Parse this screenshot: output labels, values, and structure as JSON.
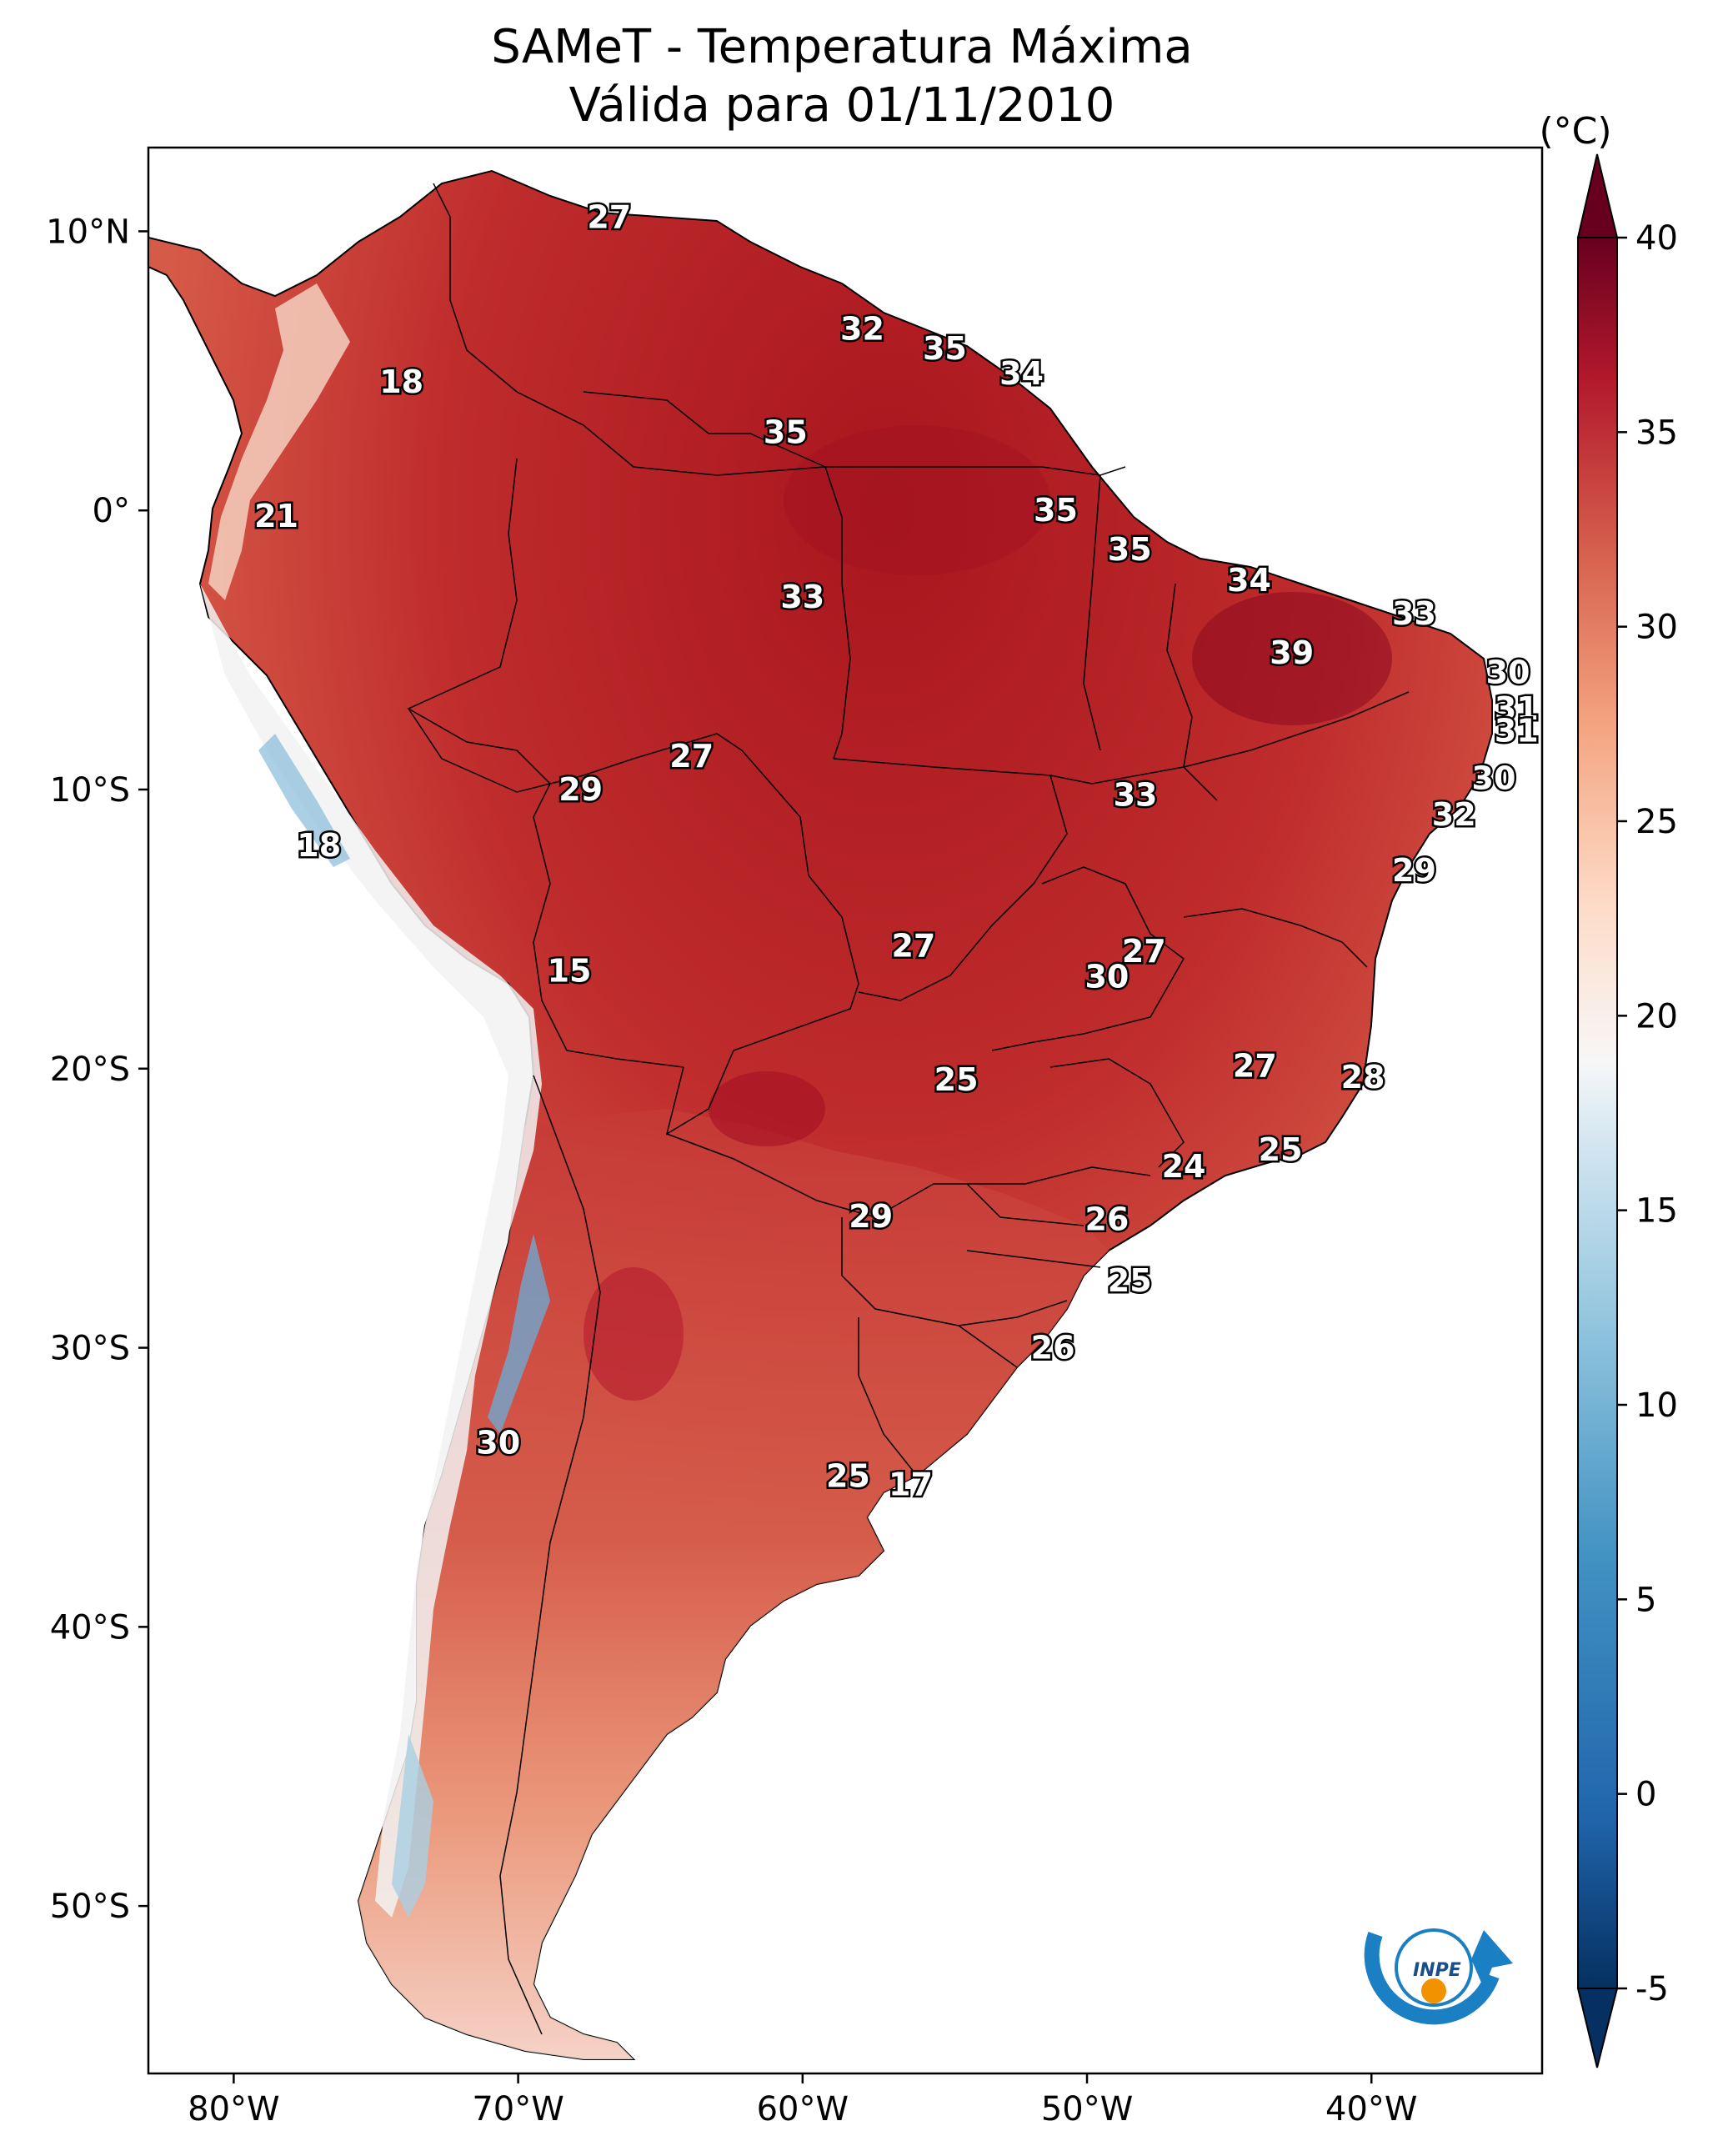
{
  "title": {
    "line1": "SAMeT - Temperatura Máxima",
    "line2": "Válida para 01/11/2010"
  },
  "colorbar": {
    "unit": "(°C)",
    "ticks": [
      "40",
      "35",
      "30",
      "25",
      "20",
      "15",
      "10",
      "5",
      "0",
      "-5"
    ],
    "tick_values": [
      40,
      35,
      30,
      25,
      20,
      15,
      10,
      5,
      0,
      -5
    ],
    "min": -5,
    "max": 40,
    "colormap": "RdBu_r",
    "extend": "both"
  },
  "axes": {
    "lon_ticks": [
      "80°W",
      "70°W",
      "60°W",
      "50°W",
      "40°W"
    ],
    "lon_values": [
      -80,
      -70,
      -60,
      -50,
      -40
    ],
    "lat_ticks": [
      "10°N",
      "0°",
      "10°S",
      "20°S",
      "30°S",
      "40°S",
      "50°S"
    ],
    "lat_values": [
      10,
      0,
      -10,
      -20,
      -30,
      -40,
      -50
    ],
    "lon_range": [
      -83,
      -34
    ],
    "lat_range": [
      -56,
      13
    ]
  },
  "city_labels": [
    {
      "text": "27",
      "lon": -66.8,
      "lat": 10.5
    },
    {
      "text": "32",
      "lon": -57.9,
      "lat": 6.5
    },
    {
      "text": "35",
      "lon": -55.0,
      "lat": 5.8
    },
    {
      "text": "34",
      "lon": -52.3,
      "lat": 4.9
    },
    {
      "text": "18",
      "lon": -74.1,
      "lat": 4.6
    },
    {
      "text": "35",
      "lon": -60.6,
      "lat": 2.8
    },
    {
      "text": "35",
      "lon": -51.1,
      "lat": 0.0
    },
    {
      "text": "21",
      "lon": -78.5,
      "lat": -0.2
    },
    {
      "text": "35",
      "lon": -48.5,
      "lat": -1.4
    },
    {
      "text": "34",
      "lon": -44.3,
      "lat": -2.5
    },
    {
      "text": "33",
      "lon": -60.0,
      "lat": -3.1
    },
    {
      "text": "33",
      "lon": -38.5,
      "lat": -3.7
    },
    {
      "text": "39",
      "lon": -42.8,
      "lat": -5.1
    },
    {
      "text": "30",
      "lon": -35.2,
      "lat": -5.8
    },
    {
      "text": "31",
      "lon": -34.9,
      "lat": -7.1
    },
    {
      "text": "31",
      "lon": -34.9,
      "lat": -7.9
    },
    {
      "text": "27",
      "lon": -63.9,
      "lat": -8.8
    },
    {
      "text": "29",
      "lon": -67.8,
      "lat": -10.0
    },
    {
      "text": "30",
      "lon": -35.7,
      "lat": -9.6
    },
    {
      "text": "33",
      "lon": -48.3,
      "lat": -10.2
    },
    {
      "text": "32",
      "lon": -37.1,
      "lat": -10.9
    },
    {
      "text": "18",
      "lon": -77.0,
      "lat": -12.0
    },
    {
      "text": "29",
      "lon": -38.5,
      "lat": -12.9
    },
    {
      "text": "27",
      "lon": -56.1,
      "lat": -15.6
    },
    {
      "text": "27",
      "lon": -48.0,
      "lat": -15.8
    },
    {
      "text": "30",
      "lon": -49.3,
      "lat": -16.7
    },
    {
      "text": "15",
      "lon": -68.2,
      "lat": -16.5
    },
    {
      "text": "27",
      "lon": -44.1,
      "lat": -19.9
    },
    {
      "text": "28",
      "lon": -40.3,
      "lat": -20.3
    },
    {
      "text": "25",
      "lon": -54.6,
      "lat": -20.4
    },
    {
      "text": "25",
      "lon": -43.2,
      "lat": -22.9
    },
    {
      "text": "24",
      "lon": -46.6,
      "lat": -23.5
    },
    {
      "text": "29",
      "lon": -57.6,
      "lat": -25.3
    },
    {
      "text": "26",
      "lon": -49.3,
      "lat": -25.4
    },
    {
      "text": "25",
      "lon": -48.5,
      "lat": -27.6
    },
    {
      "text": "26",
      "lon": -51.2,
      "lat": -30.0
    },
    {
      "text": "30",
      "lon": -70.7,
      "lat": -33.4
    },
    {
      "text": "25",
      "lon": -58.4,
      "lat": -34.6
    },
    {
      "text": "17",
      "lon": -56.2,
      "lat": -34.9
    }
  ],
  "logo": {
    "text": "INPE"
  }
}
